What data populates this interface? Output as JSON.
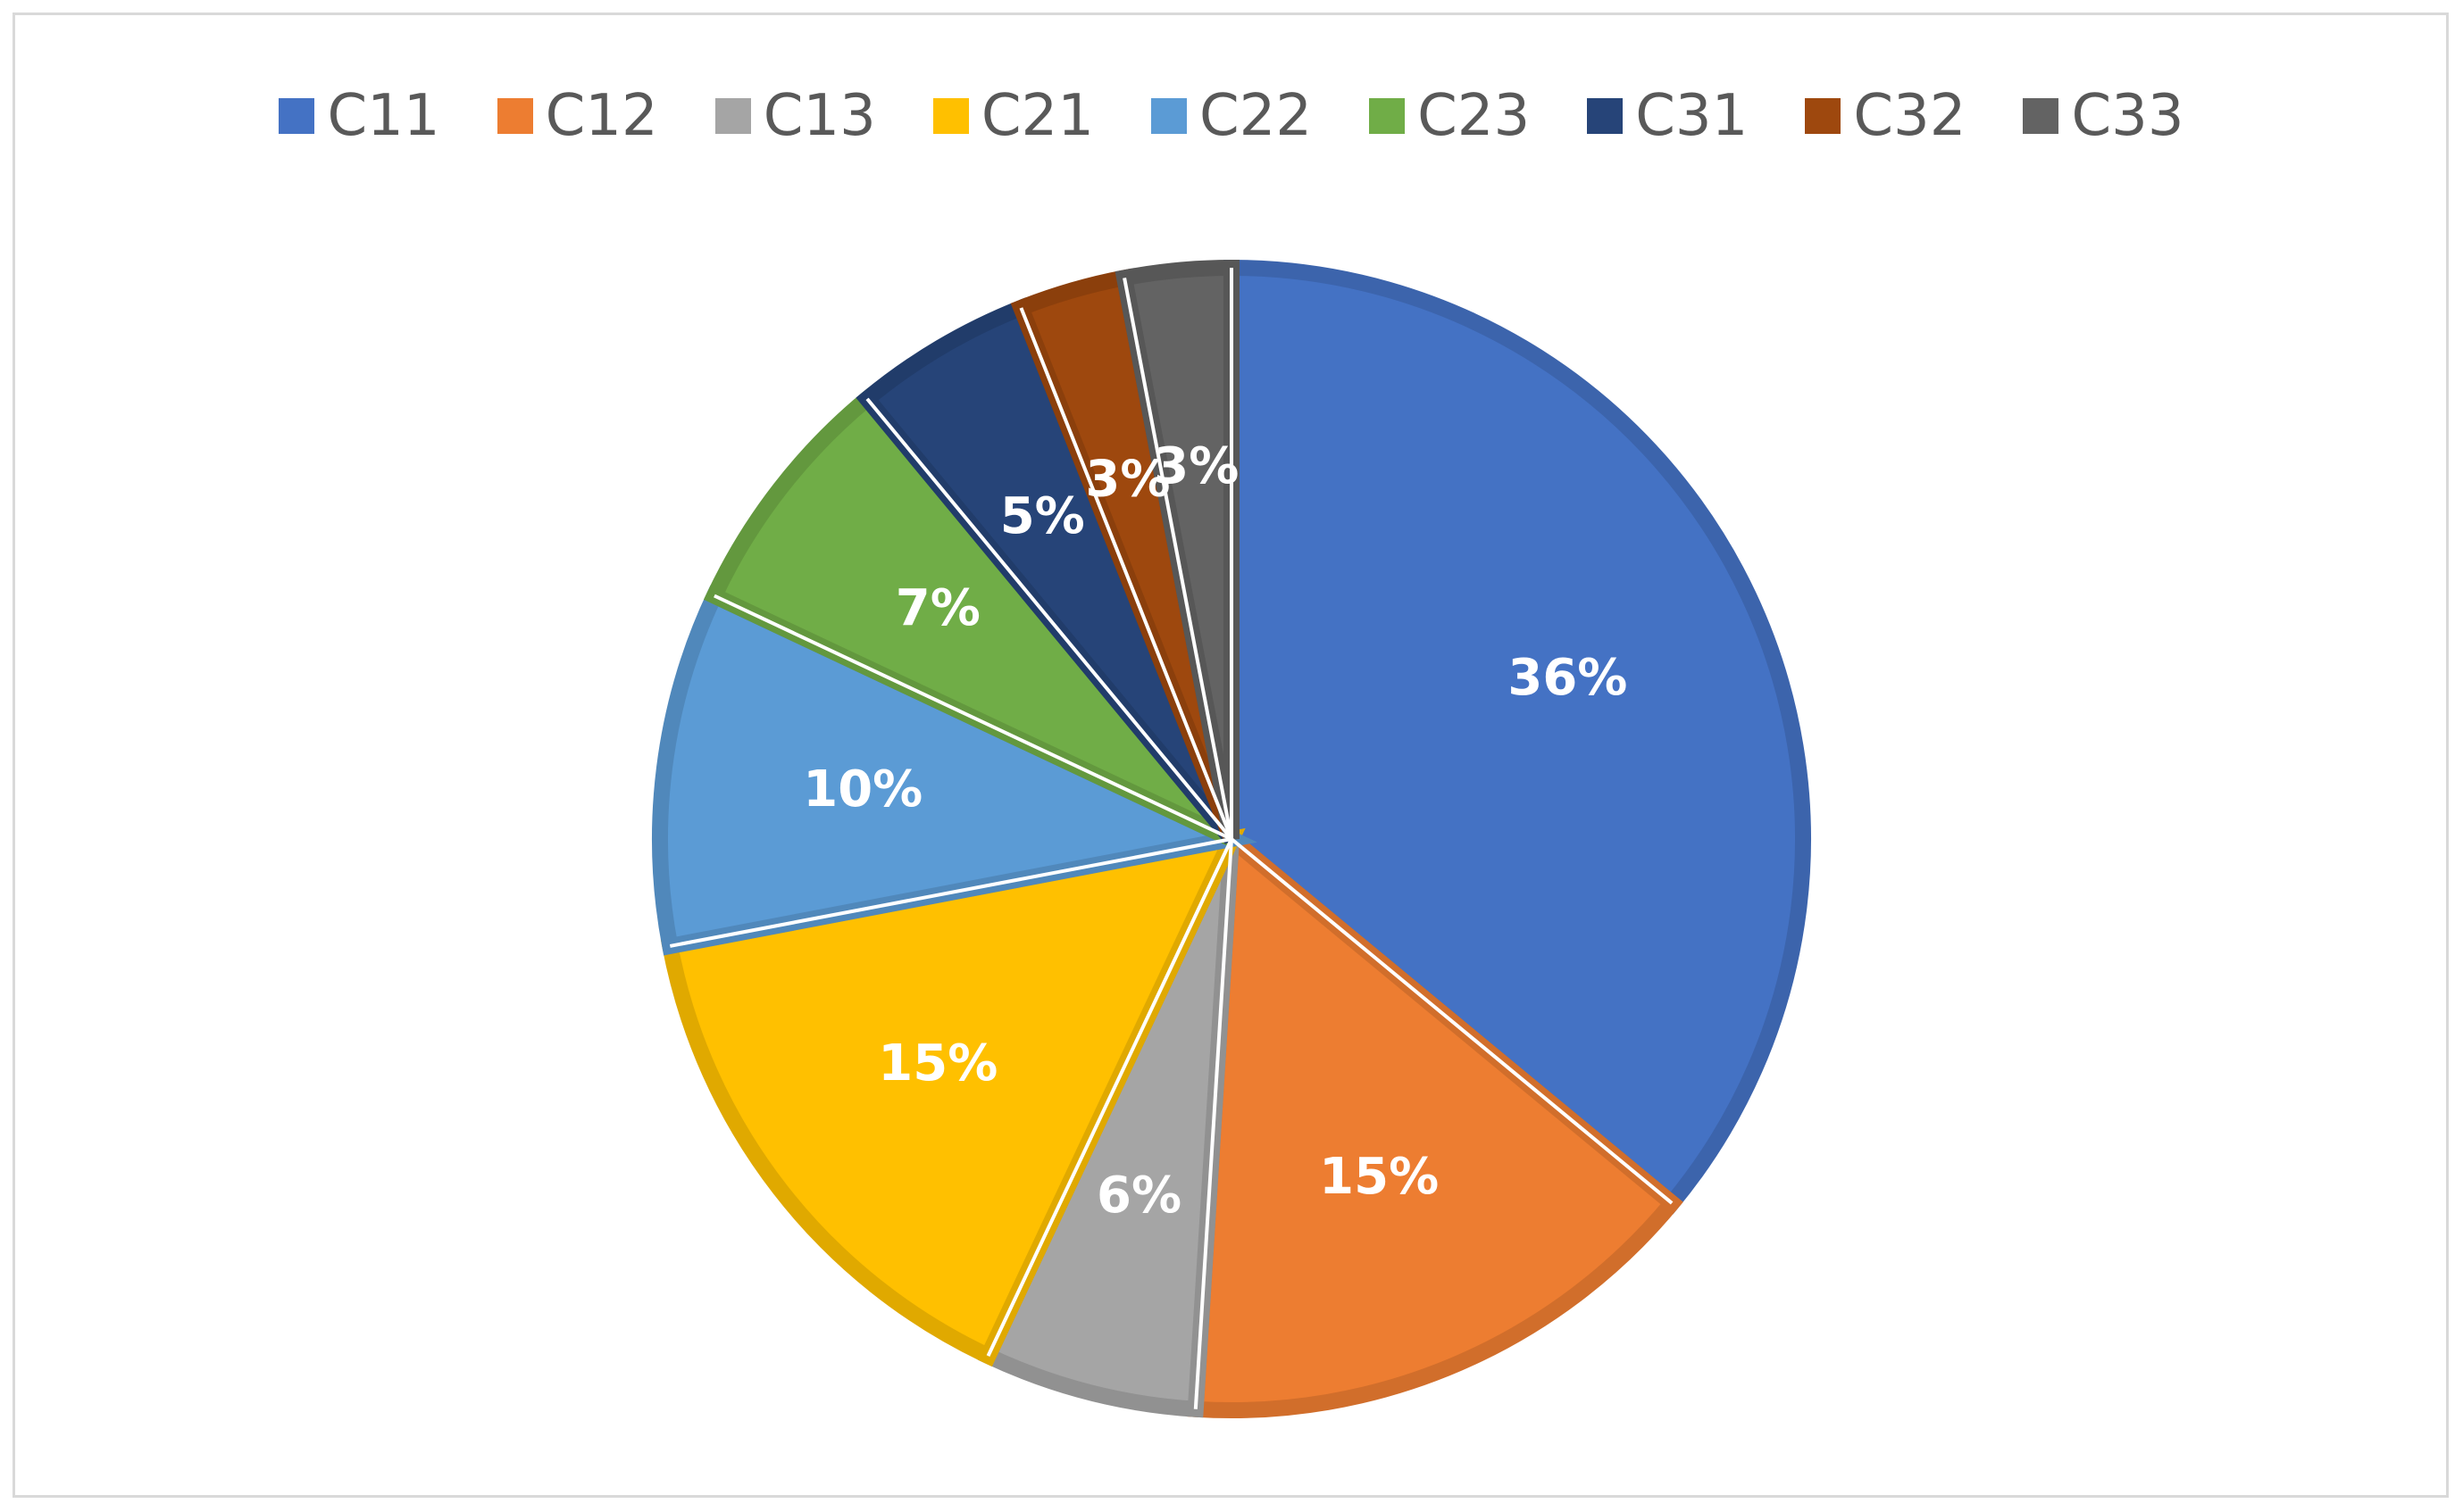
{
  "chart_data": {
    "type": "pie",
    "categories": [
      "C11",
      "C12",
      "C13",
      "C21",
      "C22",
      "C23",
      "C31",
      "C32",
      "C33"
    ],
    "values": [
      36,
      15,
      6,
      15,
      10,
      7,
      5,
      3,
      3
    ],
    "value_labels": [
      "36%",
      "15%",
      "6%",
      "15%",
      "10%",
      "7%",
      "5%",
      "3%",
      "3%"
    ],
    "colors": [
      "#4472C4",
      "#ED7D31",
      "#A5A5A5",
      "#FFC000",
      "#5B9BD5",
      "#70AD47",
      "#264478",
      "#9E480E",
      "#636363"
    ],
    "legend_position": "top",
    "start_angle": "12 o'clock",
    "direction": "clockwise"
  },
  "legend": {
    "items": [
      {
        "label": "C11",
        "color": "#4472C4"
      },
      {
        "label": "C12",
        "color": "#ED7D31"
      },
      {
        "label": "C13",
        "color": "#A5A5A5"
      },
      {
        "label": "C21",
        "color": "#FFC000"
      },
      {
        "label": "C22",
        "color": "#5B9BD5"
      },
      {
        "label": "C23",
        "color": "#70AD47"
      },
      {
        "label": "C31",
        "color": "#264478"
      },
      {
        "label": "C32",
        "color": "#9E480E"
      },
      {
        "label": "C33",
        "color": "#636363"
      }
    ]
  }
}
